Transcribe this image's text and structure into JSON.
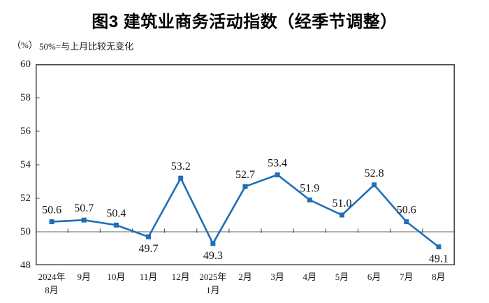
{
  "page": {
    "title": "图3  建筑业商务活动指数（经季节调整）",
    "unit_label": "（%）",
    "note": "50%=与上月比较无变化"
  },
  "chart_data": {
    "type": "line",
    "title": "图3 建筑业商务活动指数（经季节调整）",
    "xlabel": "",
    "ylabel": "%",
    "categories": [
      "2024年\n8月",
      "9月",
      "10月",
      "11月",
      "12月",
      "2025年\n1月",
      "2月",
      "3月",
      "4月",
      "5月",
      "6月",
      "7月",
      "8月"
    ],
    "values": [
      50.6,
      50.7,
      50.4,
      49.7,
      53.2,
      49.3,
      52.7,
      53.4,
      51.9,
      51.0,
      52.8,
      50.6,
      49.1
    ],
    "data_label_positions": [
      "above",
      "above",
      "above",
      "below",
      "above",
      "below",
      "above",
      "above",
      "above",
      "above",
      "above",
      "above",
      "below"
    ],
    "ylim": [
      48,
      60
    ],
    "yticks": [
      48,
      50,
      52,
      54,
      56,
      58,
      60
    ],
    "reference_line": 50,
    "grid": false,
    "legend": "none",
    "colors": {
      "line": "#1F6EB5",
      "marker": "#1F6EB5",
      "axis": "#404040",
      "reference": "#808080",
      "text": "#111111"
    }
  }
}
